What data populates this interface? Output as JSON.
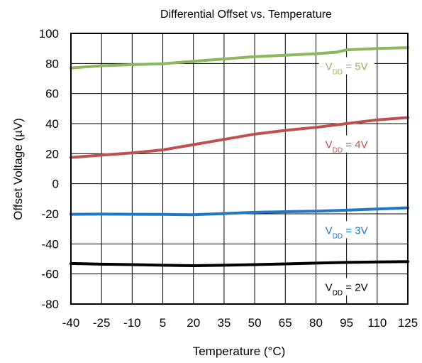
{
  "chart_data": {
    "type": "line",
    "title": "Differential Offset vs. Temperature",
    "xlabel": "Temperature (°C)",
    "ylabel": "Offset Voltage (µV)",
    "xlim": [
      -40,
      125
    ],
    "ylim": [
      -80,
      100
    ],
    "x_ticks": [
      -40,
      -25,
      -10,
      5,
      20,
      35,
      50,
      65,
      80,
      95,
      110,
      125
    ],
    "y_ticks": [
      -80,
      -60,
      -40,
      -20,
      0,
      20,
      40,
      60,
      80,
      100
    ],
    "grid": true,
    "series": [
      {
        "name": "VDD = 5V",
        "label": {
          "prefix": "V",
          "sub": "DD",
          "suffix": " = 5V"
        },
        "color": "#8cb85c",
        "x": [
          -40,
          -25,
          -10,
          5,
          20,
          35,
          50,
          65,
          80,
          90,
          95,
          110,
          125
        ],
        "y": [
          77,
          78.5,
          79.2,
          79.8,
          81.5,
          83,
          84.5,
          85.5,
          86.5,
          87.5,
          89,
          90,
          90.5
        ]
      },
      {
        "name": "VDD = 4V",
        "label": {
          "prefix": "V",
          "sub": "DD",
          "suffix": " = 4V"
        },
        "color": "#c0504d",
        "x": [
          -40,
          -25,
          -10,
          5,
          20,
          35,
          50,
          65,
          80,
          95,
          110,
          125
        ],
        "y": [
          17.5,
          19,
          20.5,
          22.5,
          26,
          29.5,
          33,
          35.5,
          37.5,
          40,
          42.5,
          44
        ]
      },
      {
        "name": "VDD = 3V",
        "label": {
          "prefix": "V",
          "sub": "DD",
          "suffix": " = 3V"
        },
        "color": "#1f77c6",
        "x": [
          -40,
          -25,
          -10,
          5,
          20,
          35,
          50,
          65,
          80,
          95,
          110,
          125
        ],
        "y": [
          -20.3,
          -20.2,
          -20.3,
          -20.4,
          -20.6,
          -19.8,
          -19,
          -18.6,
          -18.2,
          -17.6,
          -16.8,
          -16
        ]
      },
      {
        "name": "VDD = 2V",
        "label": {
          "prefix": "V",
          "sub": "DD",
          "suffix": " = 2V"
        },
        "color": "#000000",
        "x": [
          -40,
          -25,
          -10,
          5,
          20,
          35,
          50,
          65,
          80,
          95,
          110,
          125
        ],
        "y": [
          -53,
          -53.5,
          -53.8,
          -54.2,
          -54.5,
          -54.2,
          -53.8,
          -53.3,
          -52.8,
          -52.3,
          -52,
          -51.8
        ]
      }
    ],
    "label_anchor_x": [
      95,
      95,
      95,
      95
    ],
    "label_anchor_y": [
      78,
      26,
      -31,
      -69
    ]
  }
}
